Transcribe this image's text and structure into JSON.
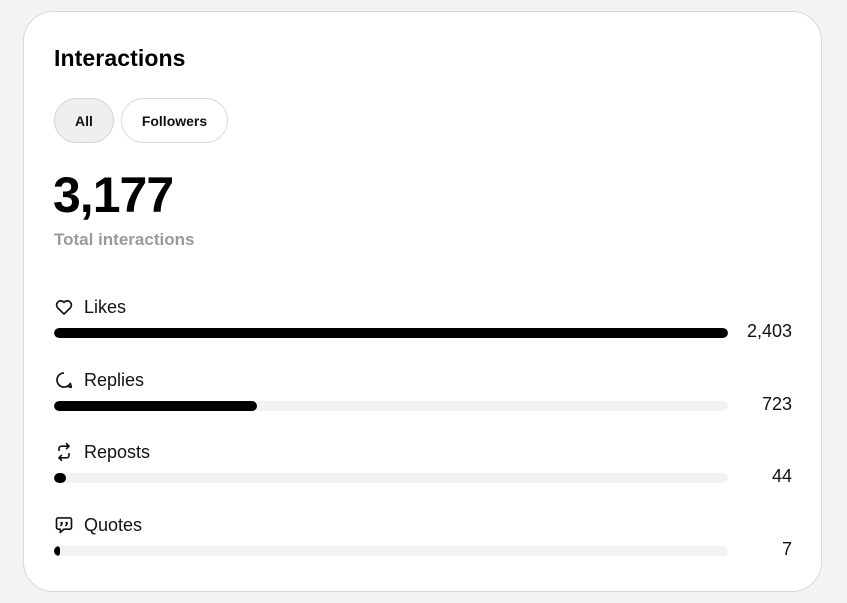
{
  "card": {
    "title": "Interactions",
    "tabs": [
      {
        "label": "All",
        "active": true
      },
      {
        "label": "Followers",
        "active": false
      }
    ],
    "total_value": "3,177",
    "total_label": "Total interactions"
  },
  "metrics": [
    {
      "icon": "heart-icon",
      "label": "Likes",
      "value": "2,403",
      "count": 2403
    },
    {
      "icon": "reply-bubble-icon",
      "label": "Replies",
      "value": "723",
      "count": 723
    },
    {
      "icon": "repost-icon",
      "label": "Reposts",
      "value": "44",
      "count": 44
    },
    {
      "icon": "quote-bubble-icon",
      "label": "Quotes",
      "value": "7",
      "count": 7
    }
  ],
  "colors": {
    "bar_fill": "#000000",
    "bar_track": "#f2f2f2",
    "muted_text": "#9a9a9a",
    "active_tab_bg": "#efefef"
  }
}
